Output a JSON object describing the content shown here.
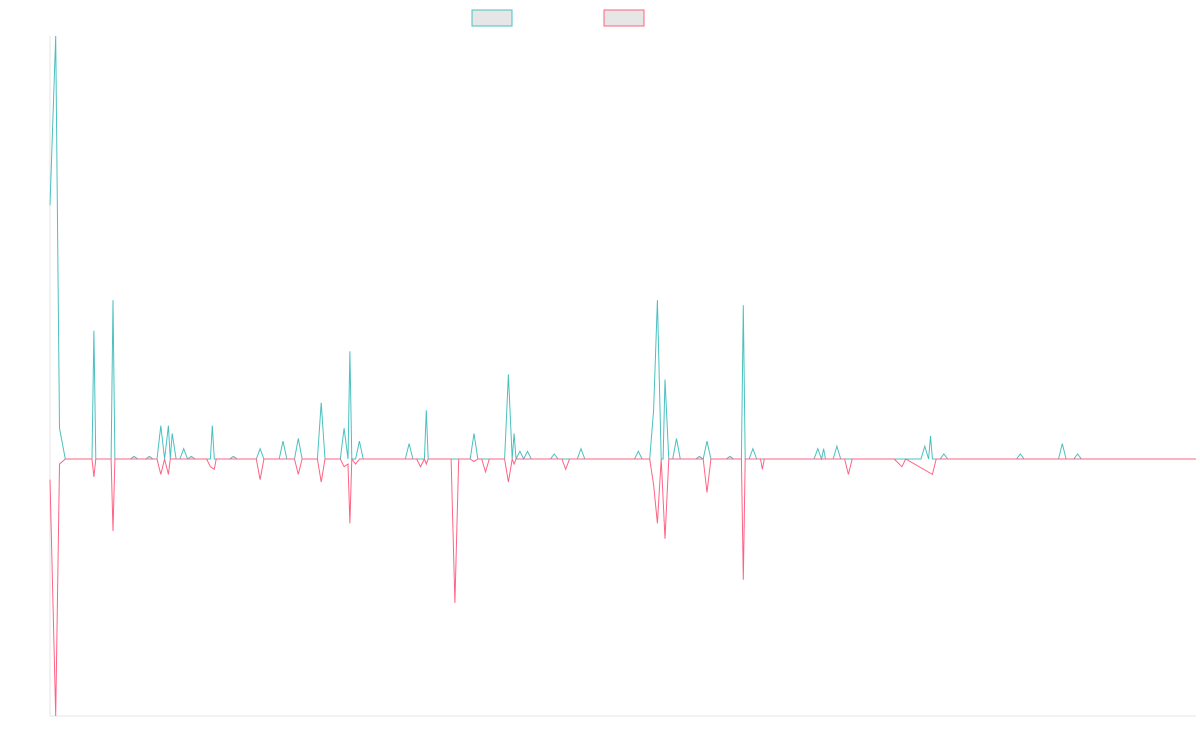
{
  "colors": {
    "series_a": "#4bc0c0",
    "series_b": "#ff6384",
    "legend_fill": "#e6e6e6",
    "axis": "#e6e6e6",
    "background": "#ffffff"
  },
  "legend": {
    "placement": "top-center",
    "items": [
      {
        "label": "",
        "color": "#4bc0c0"
      },
      {
        "label": "",
        "color": "#ff6384"
      }
    ]
  },
  "chart_data": {
    "type": "line",
    "title": "",
    "xlabel": "",
    "ylabel": "",
    "grid": false,
    "xlim": [
      0,
      300
    ],
    "ylim": [
      -100,
      165
    ],
    "series": [
      {
        "color": "#4bc0c0",
        "points": [
          [
            0,
            99
          ],
          [
            1.5,
            165
          ],
          [
            2.5,
            12
          ],
          [
            4,
            0
          ],
          [
            5,
            0
          ],
          [
            11,
            0
          ],
          [
            11.5,
            50
          ],
          [
            12,
            0
          ],
          [
            16,
            0
          ],
          [
            16.5,
            62
          ],
          [
            17,
            0
          ],
          [
            21,
            0
          ],
          [
            22,
            1
          ],
          [
            23,
            0
          ],
          [
            25,
            0
          ],
          [
            26,
            1
          ],
          [
            27,
            0
          ],
          [
            28,
            0
          ],
          [
            29,
            13
          ],
          [
            30,
            0
          ],
          [
            31,
            13
          ],
          [
            31.5,
            0
          ],
          [
            32,
            10
          ],
          [
            33,
            0
          ],
          [
            34,
            0
          ],
          [
            35,
            4
          ],
          [
            36,
            0
          ],
          [
            37,
            1
          ],
          [
            38,
            0
          ],
          [
            42,
            0
          ],
          [
            42.5,
            13
          ],
          [
            43,
            0
          ],
          [
            47,
            0
          ],
          [
            48,
            1
          ],
          [
            49,
            0
          ],
          [
            54,
            0
          ],
          [
            55,
            4
          ],
          [
            56,
            0
          ],
          [
            60,
            0
          ],
          [
            61,
            7
          ],
          [
            62,
            0
          ],
          [
            64,
            0
          ],
          [
            65,
            8
          ],
          [
            66,
            0
          ],
          [
            70,
            0
          ],
          [
            71,
            22
          ],
          [
            72,
            0
          ],
          [
            76,
            0
          ],
          [
            77,
            12
          ],
          [
            78,
            0
          ],
          [
            78.5,
            42
          ],
          [
            79,
            0
          ],
          [
            80,
            0
          ],
          [
            81,
            7
          ],
          [
            82,
            0
          ],
          [
            90,
            0
          ],
          [
            93,
            0
          ],
          [
            94,
            6
          ],
          [
            95,
            0
          ],
          [
            98,
            0
          ],
          [
            98.5,
            19
          ],
          [
            99,
            0
          ],
          [
            103,
            0
          ],
          [
            104,
            0
          ],
          [
            105,
            0
          ],
          [
            110,
            0
          ],
          [
            111,
            10
          ],
          [
            112,
            0
          ],
          [
            114,
            0
          ],
          [
            116,
            0
          ],
          [
            117,
            0
          ],
          [
            118,
            0
          ],
          [
            119,
            0
          ],
          [
            120,
            33
          ],
          [
            121,
            0
          ],
          [
            121.5,
            10
          ],
          [
            122,
            0
          ],
          [
            123,
            3
          ],
          [
            124,
            0
          ],
          [
            125,
            3
          ],
          [
            126,
            0
          ],
          [
            131,
            0
          ],
          [
            132,
            2
          ],
          [
            133,
            0
          ],
          [
            135,
            0
          ],
          [
            136,
            0
          ],
          [
            137,
            0
          ],
          [
            138,
            0
          ],
          [
            139,
            4
          ],
          [
            140,
            0
          ],
          [
            141,
            0
          ],
          [
            142,
            0
          ],
          [
            145,
            0
          ],
          [
            146,
            0
          ],
          [
            147,
            0
          ],
          [
            153,
            0
          ],
          [
            154,
            3
          ],
          [
            155,
            0
          ],
          [
            157,
            0
          ],
          [
            158,
            19
          ],
          [
            159,
            62
          ],
          [
            160,
            0
          ],
          [
            160.5,
            0
          ],
          [
            161,
            31
          ],
          [
            162,
            0
          ],
          [
            163,
            0
          ],
          [
            164,
            8
          ],
          [
            165,
            0
          ],
          [
            166,
            0
          ],
          [
            167,
            0
          ],
          [
            169,
            0
          ],
          [
            170,
            1
          ],
          [
            171,
            0
          ],
          [
            172,
            7
          ],
          [
            173,
            0
          ],
          [
            174,
            0
          ],
          [
            175,
            0
          ],
          [
            177,
            0
          ],
          [
            178,
            1
          ],
          [
            179,
            0
          ],
          [
            181,
            0
          ],
          [
            181.5,
            60
          ],
          [
            182,
            0
          ],
          [
            183,
            0
          ],
          [
            184,
            4
          ],
          [
            185,
            0
          ],
          [
            186,
            0
          ],
          [
            188,
            0
          ],
          [
            188.5,
            0
          ],
          [
            189,
            0
          ],
          [
            190,
            0
          ],
          [
            191,
            0
          ],
          [
            192,
            0
          ],
          [
            193,
            0
          ],
          [
            200,
            0
          ],
          [
            201,
            4
          ],
          [
            202,
            0
          ],
          [
            202.5,
            4
          ],
          [
            203,
            0
          ],
          [
            205,
            0
          ],
          [
            206,
            5
          ],
          [
            207,
            0
          ],
          [
            222,
            0
          ],
          [
            223,
            0
          ],
          [
            224,
            0
          ],
          [
            228,
            0
          ],
          [
            229,
            5
          ],
          [
            230,
            0
          ],
          [
            230.5,
            9
          ],
          [
            231,
            0
          ],
          [
            233,
            0
          ],
          [
            234,
            2
          ],
          [
            235,
            0
          ],
          [
            240,
            0
          ],
          [
            241,
            0
          ],
          [
            242,
            0
          ],
          [
            247,
            0
          ],
          [
            248,
            0
          ],
          [
            249,
            0
          ],
          [
            253,
            0
          ],
          [
            254,
            2
          ],
          [
            255,
            0
          ],
          [
            256,
            0
          ],
          [
            257,
            0
          ],
          [
            258,
            0
          ],
          [
            264,
            0
          ],
          [
            265,
            6
          ],
          [
            266,
            0
          ],
          [
            268,
            0
          ],
          [
            269,
            2
          ],
          [
            270,
            0
          ],
          [
            300,
            0
          ]
        ]
      },
      {
        "color": "#ff6384",
        "points": [
          [
            0,
            -8
          ],
          [
            1.5,
            -100
          ],
          [
            2.5,
            -2
          ],
          [
            4,
            0
          ],
          [
            11,
            0
          ],
          [
            11.5,
            -7
          ],
          [
            12,
            0
          ],
          [
            16,
            0
          ],
          [
            16.5,
            -28
          ],
          [
            17,
            0
          ],
          [
            28,
            0
          ],
          [
            29,
            -6
          ],
          [
            30,
            0
          ],
          [
            31,
            -6
          ],
          [
            31.5,
            0
          ],
          [
            41,
            0
          ],
          [
            42,
            -3
          ],
          [
            43,
            -4
          ],
          [
            43.5,
            0
          ],
          [
            54,
            0
          ],
          [
            55,
            -8
          ],
          [
            56,
            0
          ],
          [
            64,
            0
          ],
          [
            65,
            -6
          ],
          [
            66,
            0
          ],
          [
            70,
            0
          ],
          [
            71,
            -9
          ],
          [
            72,
            0
          ],
          [
            76,
            0
          ],
          [
            77,
            -3
          ],
          [
            78,
            -2
          ],
          [
            78.5,
            -25
          ],
          [
            79,
            0
          ],
          [
            80,
            -2
          ],
          [
            81,
            0
          ],
          [
            96,
            0
          ],
          [
            97,
            -3
          ],
          [
            98,
            0
          ],
          [
            98.5,
            -2
          ],
          [
            99,
            0
          ],
          [
            105,
            0
          ],
          [
            106,
            -56
          ],
          [
            107,
            0
          ],
          [
            110,
            0
          ],
          [
            111,
            -1
          ],
          [
            112,
            0
          ],
          [
            113,
            0
          ],
          [
            114,
            -5
          ],
          [
            115,
            0
          ],
          [
            117,
            0
          ],
          [
            118,
            0
          ],
          [
            119,
            0
          ],
          [
            120,
            -9
          ],
          [
            121,
            0
          ],
          [
            121.5,
            -2
          ],
          [
            122,
            0
          ],
          [
            134,
            0
          ],
          [
            135,
            -4
          ],
          [
            136,
            0
          ],
          [
            157,
            0
          ],
          [
            158,
            -10
          ],
          [
            159,
            -25
          ],
          [
            160,
            0
          ],
          [
            161,
            -31
          ],
          [
            162,
            0
          ],
          [
            171,
            0
          ],
          [
            172,
            -13
          ],
          [
            173,
            0
          ],
          [
            181,
            0
          ],
          [
            181.5,
            -47
          ],
          [
            182,
            0
          ],
          [
            186,
            0
          ],
          [
            186.5,
            -4
          ],
          [
            187,
            0
          ],
          [
            208,
            0
          ],
          [
            209,
            -6
          ],
          [
            210,
            0
          ],
          [
            221,
            0
          ],
          [
            223,
            -3
          ],
          [
            224,
            0
          ],
          [
            231,
            -6
          ],
          [
            232,
            0
          ],
          [
            300,
            0
          ]
        ]
      }
    ]
  }
}
